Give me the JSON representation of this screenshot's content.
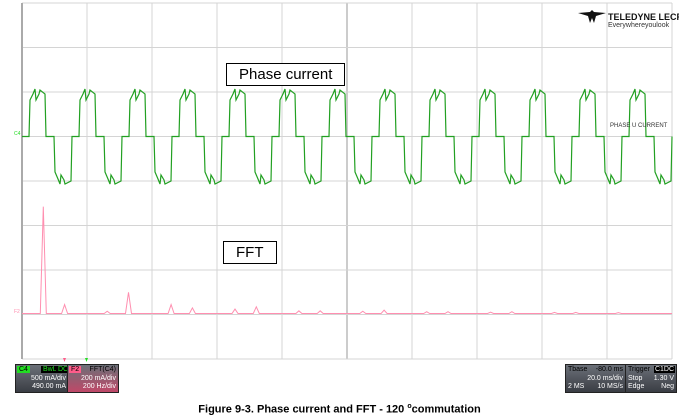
{
  "logo": {
    "brand": "TELEDYNE LECROY",
    "tagline": "Everywhereyoulook"
  },
  "annotations": {
    "phase": "Phase current",
    "fft": "FFT",
    "trace_label": "PHASE U CURRENT",
    "c4_marker": "C4",
    "f2_marker": "F2"
  },
  "channels": {
    "c4": {
      "tag": "C4",
      "coupling": "BwL",
      "coupling2": "DC",
      "scale": "500 mA/div",
      "offset": "490.00 mA",
      "color": "#22a022"
    },
    "f2": {
      "tag": "F2",
      "source": "FFT(C4)",
      "scale": "200 mA/div",
      "hscale": "200 Hz/div",
      "color": "#ff8fb0"
    }
  },
  "timebase": {
    "label": "Tbase",
    "delay": "-80.0 ms",
    "scale": "20.0 ms/div",
    "memory": "2 MS",
    "rate": "10 MS/s"
  },
  "trigger": {
    "label": "Trigger",
    "tag": "C1DC",
    "mode": "Stop",
    "level": "1.30 V",
    "type": "Edge",
    "slope": "Neg"
  },
  "caption": {
    "text": "Figure 9-3. Phase current and FFT - 120 ",
    "sup": "o",
    "tail": "commutation"
  },
  "chart_data": [
    {
      "type": "line",
      "title": "Phase current",
      "xlabel": "",
      "ylabel": "",
      "x_div": "20.0 ms/div",
      "y_div": "500 mA/div",
      "grid": true,
      "description_values": {
        "periods_shown": 13,
        "levels_div": [
          1,
          0,
          -1,
          0
        ]
      }
    },
    {
      "type": "line",
      "title": "FFT",
      "x_div": "200 Hz/div",
      "y_div": "200 mA/div",
      "grid": true,
      "harmonics": [
        1,
        2,
        4,
        5,
        7,
        8,
        10,
        11,
        13,
        14,
        16,
        17,
        19,
        20,
        22,
        23,
        25,
        26,
        28
      ],
      "amplitudes_mA": [
        480,
        40,
        10,
        95,
        40,
        25,
        20,
        30,
        12,
        12,
        10,
        15,
        8,
        8,
        6,
        8,
        5,
        5,
        4
      ]
    }
  ]
}
